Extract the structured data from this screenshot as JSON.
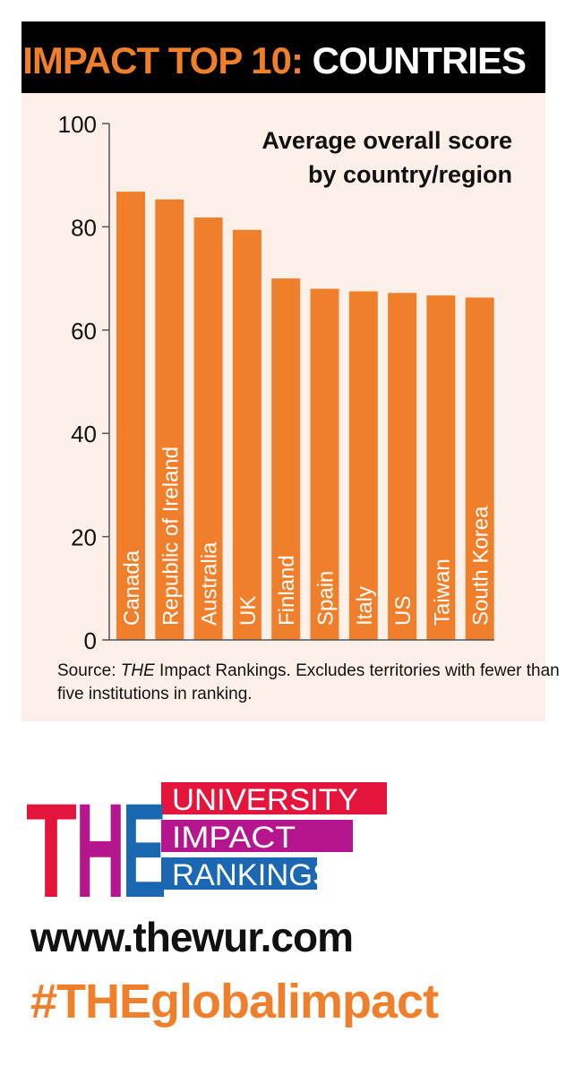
{
  "header": {
    "highlight": "IMPACT TOP 10:",
    "rest": "COUNTRIES"
  },
  "chart_data": {
    "type": "bar",
    "title": "Average overall score\nby country/region",
    "categories": [
      "Canada",
      "Republic of Ireland",
      "Australia",
      "UK",
      "Finland",
      "Spain",
      "Italy",
      "US",
      "Taiwan",
      "South Korea"
    ],
    "values": [
      86.8,
      85.3,
      81.8,
      79.4,
      70.0,
      68.0,
      67.5,
      67.2,
      66.7,
      66.3
    ],
    "ylim": [
      0,
      100
    ],
    "yticks": [
      0,
      20,
      40,
      60,
      80,
      100
    ],
    "xlabel": "",
    "ylabel": "",
    "grid": false,
    "bar_color": "#f07f2b"
  },
  "source": {
    "prefix": "Source: ",
    "italic": "THE",
    "text": " Impact Rankings. Excludes territories with fewer than five institutions in ranking."
  },
  "logo": {
    "letters": "THE",
    "line1": "UNIVERSITY",
    "line2": "IMPACT",
    "line3": "RANKINGS",
    "colors": {
      "red": "#e4143c",
      "magenta": "#b5168e",
      "blue": "#1b68b2"
    }
  },
  "footer": {
    "website": "www.thewur.com",
    "hashtag": "#THEglobalimpact"
  }
}
